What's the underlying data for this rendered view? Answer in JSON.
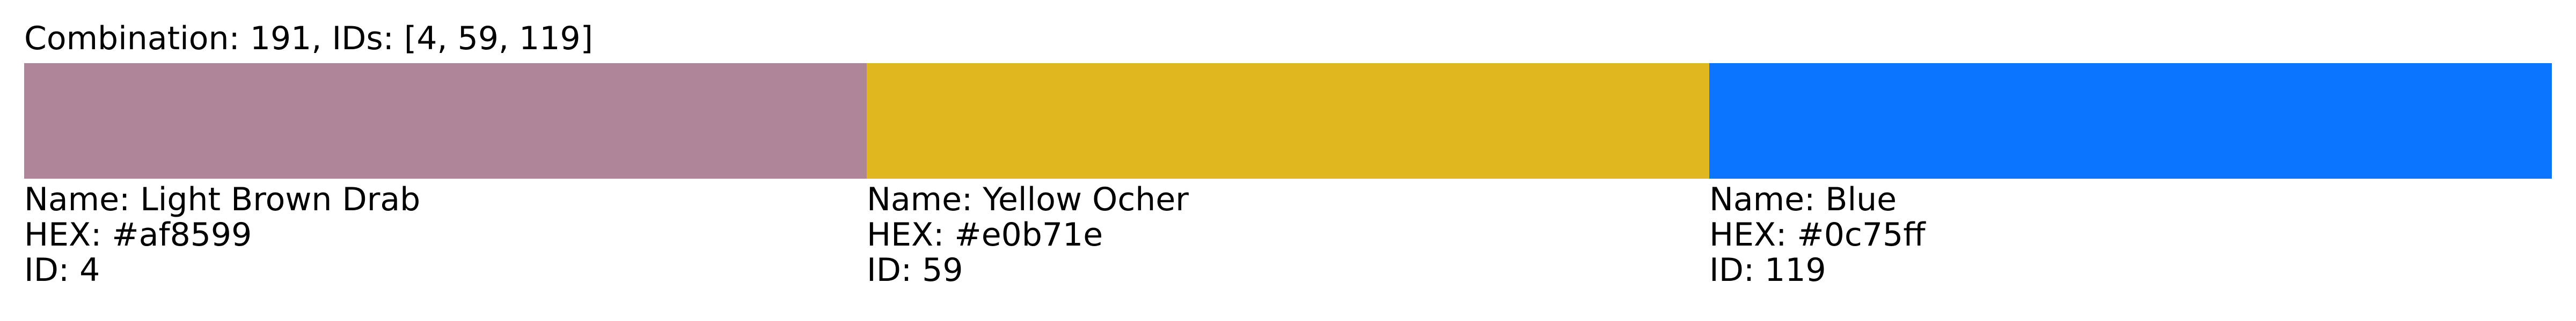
{
  "title": "Combination: 191, IDs: [4, 59, 119]",
  "colors": [
    {
      "name_text": "Name: Light Brown Drab",
      "hex_text": "HEX: #af8599",
      "id_text": "ID: 4",
      "hex": "#af8599"
    },
    {
      "name_text": "Name: Yellow Ocher",
      "hex_text": "HEX: #e0b71e",
      "id_text": "ID: 59",
      "hex": "#e0b71e"
    },
    {
      "name_text": "Name: Blue",
      "hex_text": "HEX: #0c75ff",
      "id_text": "ID: 119",
      "hex": "#0c75ff"
    }
  ]
}
